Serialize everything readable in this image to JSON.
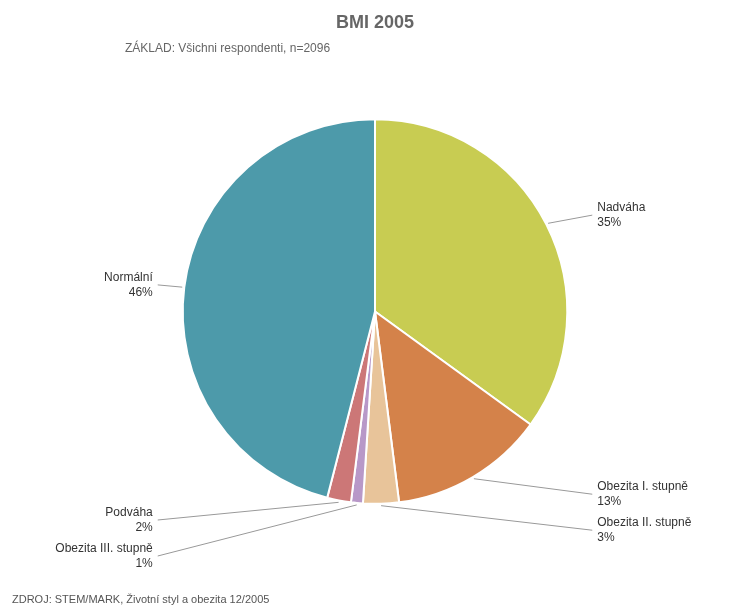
{
  "chart_data": {
    "type": "pie",
    "title": "BMI 2005",
    "subtitle": "ZÁKLAD: Všichni respondenti, n=2096",
    "annotations": [
      "ZDROJ: STEM/MARK, Životní styl a obezita 12/2005"
    ],
    "categories": [
      "Nadváha",
      "Obezita I. stupně",
      "Obezita II. stupně",
      "Obezita III. stupně",
      "Podváha",
      "Normální"
    ],
    "values": [
      35,
      13,
      3,
      1,
      2,
      46
    ],
    "value_labels": [
      "35%",
      "13%",
      "3%",
      "1%",
      "2%",
      "46%"
    ],
    "colors": [
      "#c8cc52",
      "#d4824a",
      "#e8c49a",
      "#b898c8",
      "#cc7777",
      "#4d9aaa"
    ],
    "data_labels": true
  }
}
